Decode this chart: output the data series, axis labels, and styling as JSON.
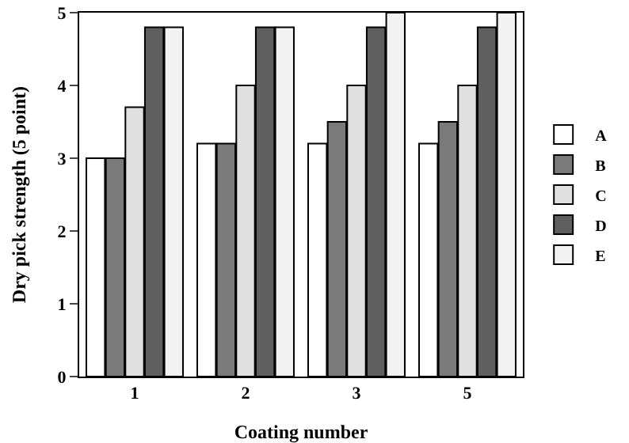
{
  "chart_data": {
    "type": "bar",
    "xlabel": "Coating number",
    "ylabel": "Dry pick strength (5 point)",
    "categories": [
      "1",
      "2",
      "3",
      "5"
    ],
    "series": [
      {
        "name": "A",
        "color": "#ffffff",
        "values": [
          3.0,
          3.2,
          3.2,
          3.2
        ]
      },
      {
        "name": "B",
        "color": "#7a7a7a",
        "values": [
          3.0,
          3.2,
          3.5,
          3.5
        ]
      },
      {
        "name": "C",
        "color": "#e0e0e0",
        "values": [
          3.7,
          4.0,
          4.0,
          4.0
        ]
      },
      {
        "name": "D",
        "color": "#5f5f5f",
        "values": [
          4.8,
          4.8,
          4.8,
          4.8
        ]
      },
      {
        "name": "E",
        "color": "#f2f2f2",
        "values": [
          4.8,
          4.8,
          5.0,
          5.0
        ]
      }
    ],
    "ylim": [
      0,
      5
    ],
    "yticks": [
      0,
      1,
      2,
      3,
      4,
      5
    ],
    "grid": false,
    "legend": "right"
  }
}
